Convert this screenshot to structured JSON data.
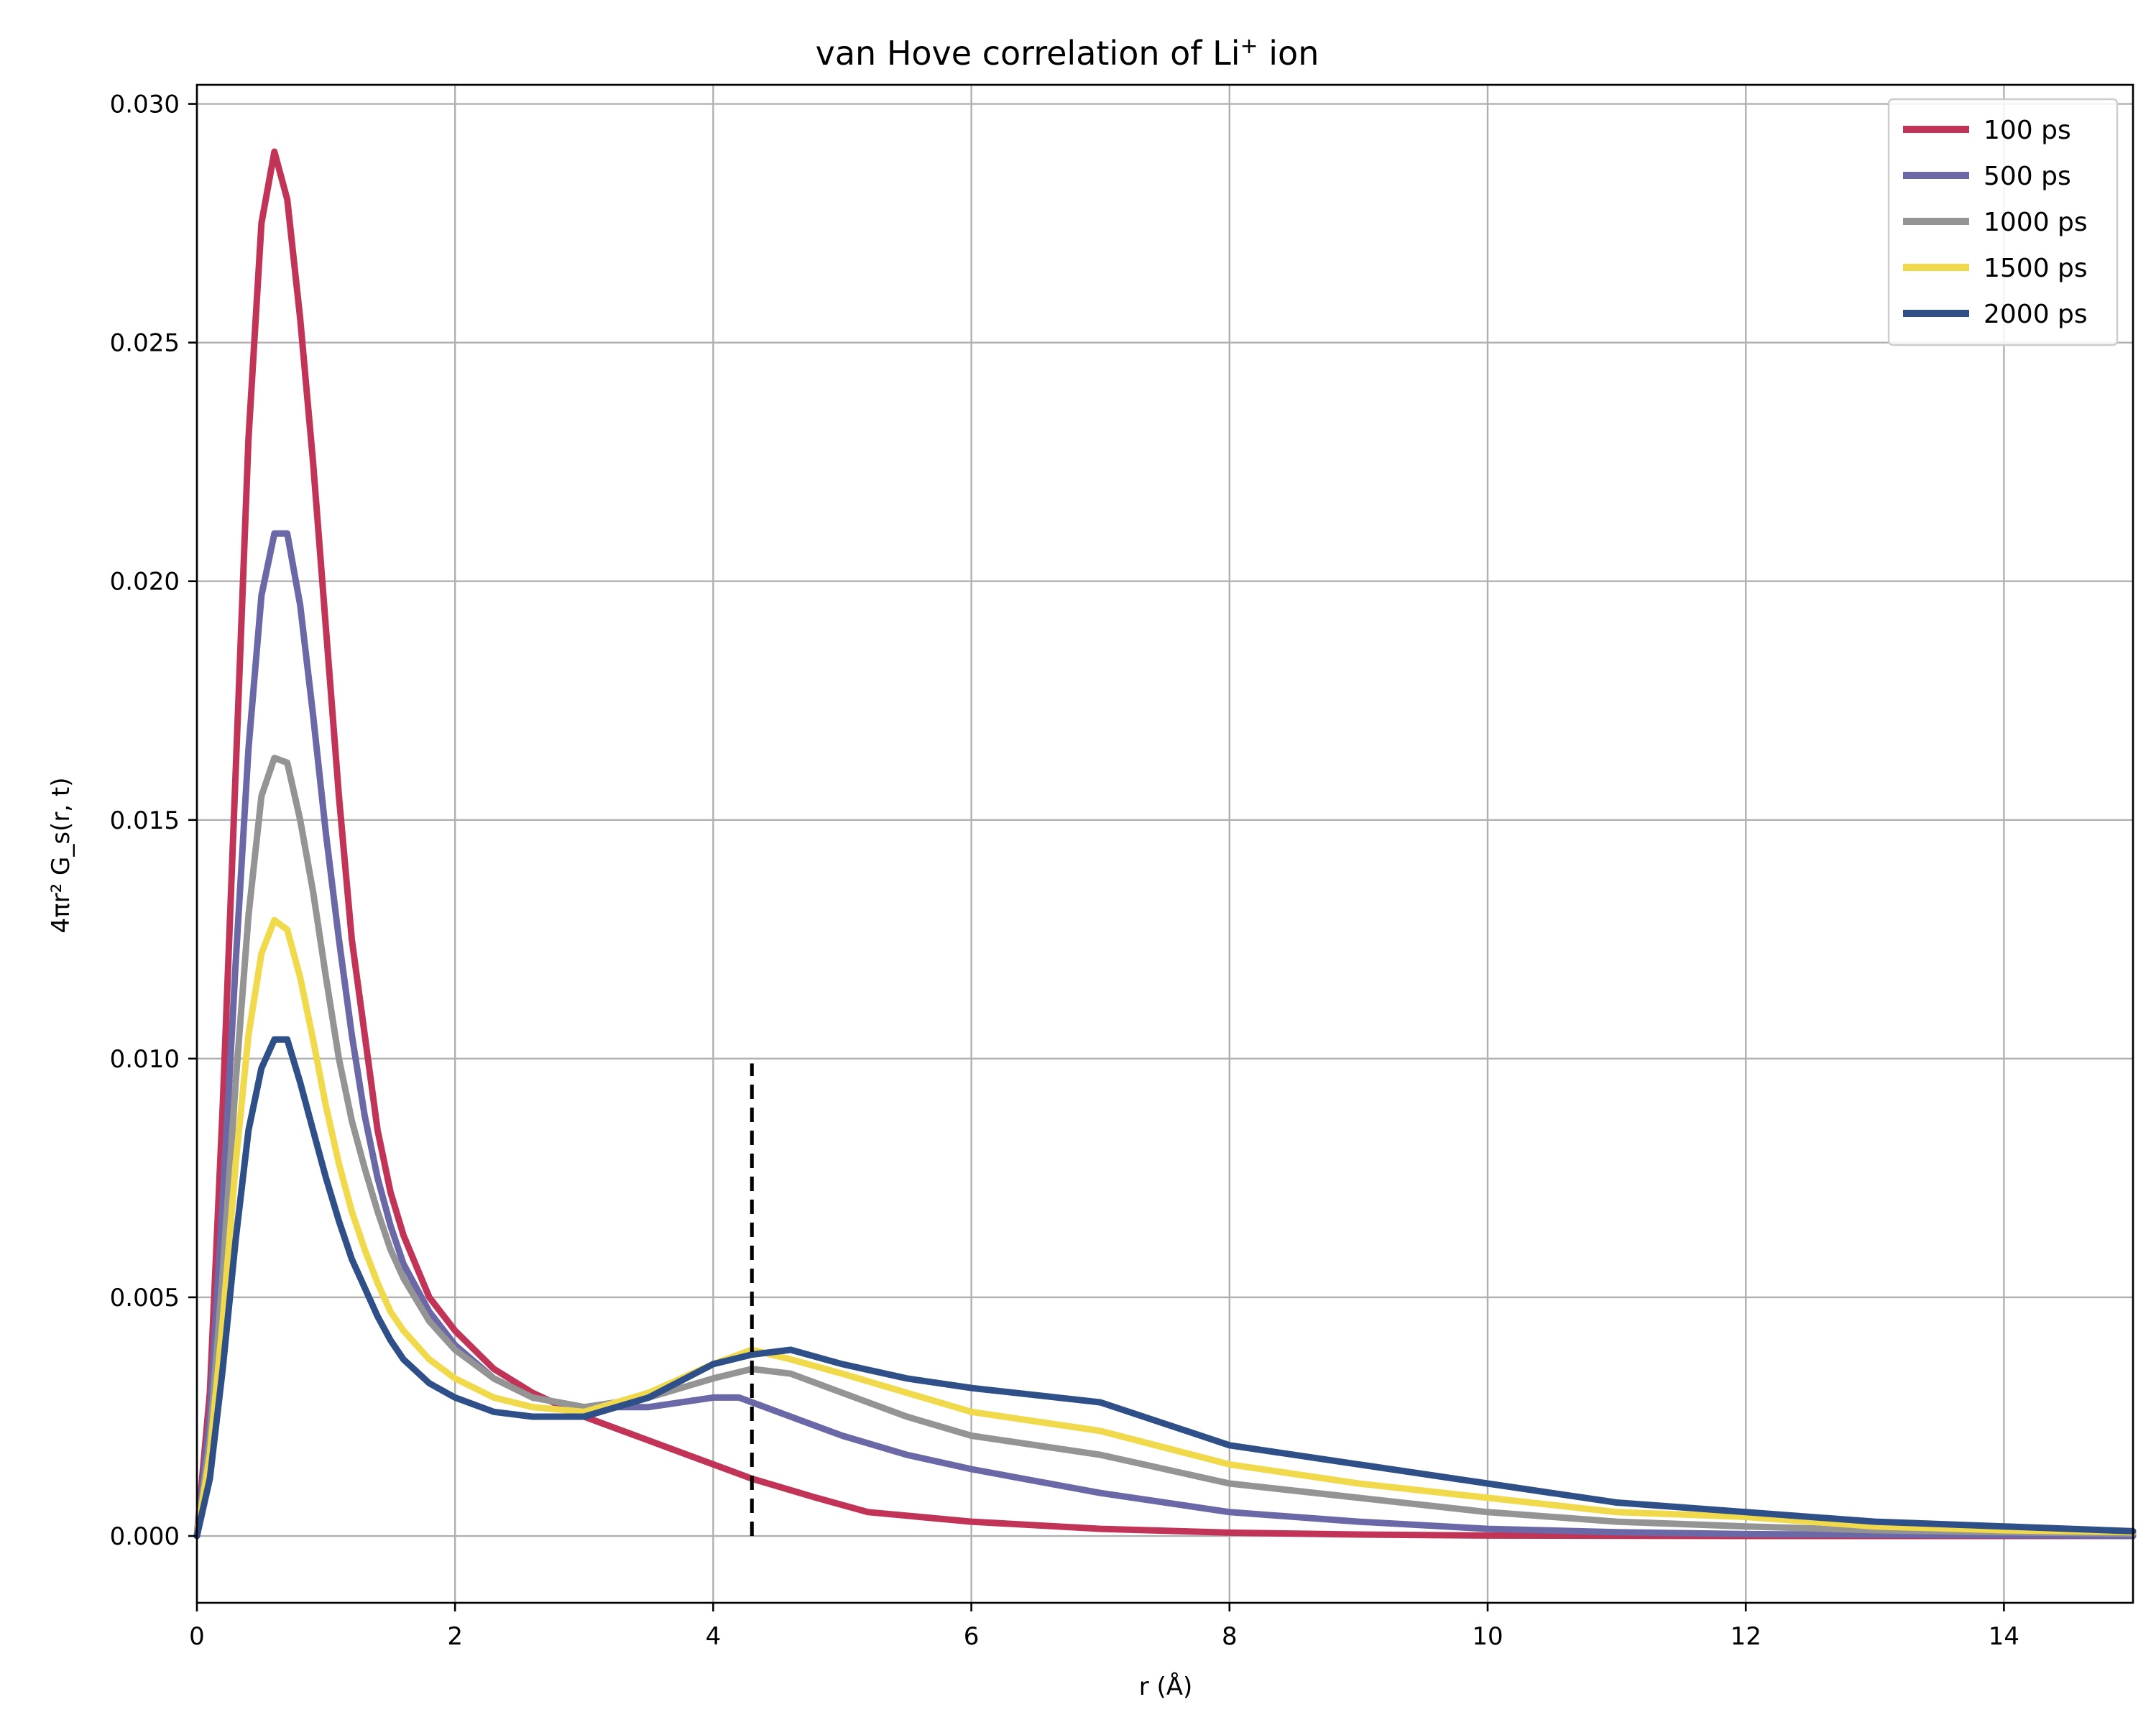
{
  "chart_data": {
    "type": "line",
    "title": "van Hove correlation of Li",
    "title_superscript": "+",
    "title_suffix": " ion",
    "xlabel": "r (Å)",
    "ylabel": "4πr² G_s(r, t)",
    "xlim": [
      0,
      15
    ],
    "ylim": [
      -0.0014,
      0.0304
    ],
    "xticks": [
      "0",
      "2",
      "4",
      "6",
      "8",
      "10",
      "12",
      "14"
    ],
    "xtick_values": [
      0,
      2,
      4,
      6,
      8,
      10,
      12,
      14
    ],
    "yticks": [
      "0.000",
      "0.005",
      "0.010",
      "0.015",
      "0.020",
      "0.025",
      "0.030"
    ],
    "ytick_values": [
      0,
      0.005,
      0.01,
      0.015,
      0.02,
      0.025,
      0.03
    ],
    "grid": true,
    "legend_position": "top-right",
    "vline": {
      "x": 4.3,
      "y_top": 0.0099,
      "style": "dashed",
      "color": "#000000"
    },
    "series": [
      {
        "name": "100 ps",
        "color": "#c23457",
        "points": [
          [
            0,
            0
          ],
          [
            0.1,
            0.003
          ],
          [
            0.2,
            0.009
          ],
          [
            0.3,
            0.016
          ],
          [
            0.4,
            0.023
          ],
          [
            0.5,
            0.0275
          ],
          [
            0.6,
            0.029
          ],
          [
            0.7,
            0.028
          ],
          [
            0.8,
            0.0255
          ],
          [
            0.9,
            0.0225
          ],
          [
            1.0,
            0.019
          ],
          [
            1.1,
            0.0155
          ],
          [
            1.2,
            0.0125
          ],
          [
            1.3,
            0.0105
          ],
          [
            1.4,
            0.0085
          ],
          [
            1.5,
            0.0072
          ],
          [
            1.6,
            0.0063
          ],
          [
            1.8,
            0.005
          ],
          [
            2.0,
            0.0043
          ],
          [
            2.3,
            0.0035
          ],
          [
            2.6,
            0.003
          ],
          [
            3.0,
            0.0025
          ],
          [
            3.4,
            0.0021
          ],
          [
            3.8,
            0.0017
          ],
          [
            4.3,
            0.0012
          ],
          [
            4.8,
            0.0008
          ],
          [
            5.2,
            0.0005
          ],
          [
            6.0,
            0.0003
          ],
          [
            7.0,
            0.00015
          ],
          [
            8.0,
            7e-05
          ],
          [
            9.0,
            3e-05
          ],
          [
            10.0,
            1e-05
          ],
          [
            12.0,
            0.0
          ],
          [
            15.0,
            0.0
          ]
        ]
      },
      {
        "name": "500 ps",
        "color": "#6b68a8",
        "points": [
          [
            0,
            0
          ],
          [
            0.1,
            0.0025
          ],
          [
            0.2,
            0.007
          ],
          [
            0.3,
            0.012
          ],
          [
            0.4,
            0.0165
          ],
          [
            0.5,
            0.0197
          ],
          [
            0.6,
            0.021
          ],
          [
            0.7,
            0.021
          ],
          [
            0.8,
            0.0195
          ],
          [
            0.9,
            0.0172
          ],
          [
            1.0,
            0.0147
          ],
          [
            1.1,
            0.0125
          ],
          [
            1.2,
            0.0105
          ],
          [
            1.3,
            0.0088
          ],
          [
            1.4,
            0.0075
          ],
          [
            1.5,
            0.0065
          ],
          [
            1.6,
            0.0057
          ],
          [
            1.8,
            0.0047
          ],
          [
            2.0,
            0.004
          ],
          [
            2.3,
            0.0033
          ],
          [
            2.6,
            0.0029
          ],
          [
            3.0,
            0.0027
          ],
          [
            3.5,
            0.0027
          ],
          [
            4.0,
            0.0029
          ],
          [
            4.2,
            0.0029
          ],
          [
            4.6,
            0.0025
          ],
          [
            5.0,
            0.0021
          ],
          [
            5.5,
            0.0017
          ],
          [
            6.0,
            0.0014
          ],
          [
            7.0,
            0.0009
          ],
          [
            8.0,
            0.0005
          ],
          [
            9.0,
            0.0003
          ],
          [
            10.0,
            0.00015
          ],
          [
            11.0,
            8e-05
          ],
          [
            12.0,
            4e-05
          ],
          [
            15.0,
            0.0
          ]
        ]
      },
      {
        "name": "1000 ps",
        "color": "#949494",
        "points": [
          [
            0,
            0
          ],
          [
            0.1,
            0.002
          ],
          [
            0.2,
            0.0055
          ],
          [
            0.3,
            0.0095
          ],
          [
            0.4,
            0.013
          ],
          [
            0.5,
            0.0155
          ],
          [
            0.6,
            0.0163
          ],
          [
            0.7,
            0.0162
          ],
          [
            0.8,
            0.015
          ],
          [
            0.9,
            0.0135
          ],
          [
            1.0,
            0.0117
          ],
          [
            1.1,
            0.01
          ],
          [
            1.2,
            0.0087
          ],
          [
            1.3,
            0.0077
          ],
          [
            1.4,
            0.0068
          ],
          [
            1.5,
            0.006
          ],
          [
            1.6,
            0.0054
          ],
          [
            1.8,
            0.0045
          ],
          [
            2.0,
            0.0039
          ],
          [
            2.3,
            0.0033
          ],
          [
            2.6,
            0.0029
          ],
          [
            3.0,
            0.0027
          ],
          [
            3.5,
            0.0029
          ],
          [
            4.0,
            0.0033
          ],
          [
            4.3,
            0.0035
          ],
          [
            4.6,
            0.0034
          ],
          [
            5.0,
            0.003
          ],
          [
            5.5,
            0.0025
          ],
          [
            6.0,
            0.0021
          ],
          [
            7.0,
            0.0017
          ],
          [
            8.0,
            0.0011
          ],
          [
            9.0,
            0.0008
          ],
          [
            10.0,
            0.0005
          ],
          [
            11.0,
            0.0003
          ],
          [
            12.0,
            0.0002
          ],
          [
            13.0,
            0.00012
          ],
          [
            14.0,
            8e-05
          ],
          [
            15.0,
            5e-05
          ]
        ]
      },
      {
        "name": "1500 ps",
        "color": "#f0da4b",
        "points": [
          [
            0,
            0
          ],
          [
            0.1,
            0.0017
          ],
          [
            0.2,
            0.0045
          ],
          [
            0.3,
            0.0078
          ],
          [
            0.4,
            0.0105
          ],
          [
            0.5,
            0.0122
          ],
          [
            0.6,
            0.0129
          ],
          [
            0.7,
            0.0127
          ],
          [
            0.8,
            0.0117
          ],
          [
            0.9,
            0.0104
          ],
          [
            1.0,
            0.009
          ],
          [
            1.1,
            0.0078
          ],
          [
            1.2,
            0.0068
          ],
          [
            1.3,
            0.006
          ],
          [
            1.4,
            0.0053
          ],
          [
            1.5,
            0.0047
          ],
          [
            1.6,
            0.0043
          ],
          [
            1.8,
            0.0037
          ],
          [
            2.0,
            0.0033
          ],
          [
            2.3,
            0.0029
          ],
          [
            2.6,
            0.0027
          ],
          [
            3.0,
            0.0026
          ],
          [
            3.5,
            0.003
          ],
          [
            4.0,
            0.0036
          ],
          [
            4.3,
            0.0039
          ],
          [
            4.6,
            0.0037
          ],
          [
            5.0,
            0.0034
          ],
          [
            5.5,
            0.003
          ],
          [
            6.0,
            0.0026
          ],
          [
            7.0,
            0.0022
          ],
          [
            8.0,
            0.0015
          ],
          [
            9.0,
            0.0011
          ],
          [
            10.0,
            0.0008
          ],
          [
            11.0,
            0.0005
          ],
          [
            12.0,
            0.0004
          ],
          [
            13.0,
            0.0002
          ],
          [
            14.0,
            0.00012
          ],
          [
            15.0,
            8e-05
          ]
        ]
      },
      {
        "name": "2000 ps",
        "color": "#2f4f88",
        "points": [
          [
            0,
            0
          ],
          [
            0.1,
            0.0012
          ],
          [
            0.2,
            0.0035
          ],
          [
            0.3,
            0.0062
          ],
          [
            0.4,
            0.0085
          ],
          [
            0.5,
            0.0098
          ],
          [
            0.6,
            0.0104
          ],
          [
            0.7,
            0.0104
          ],
          [
            0.8,
            0.0095
          ],
          [
            0.9,
            0.0085
          ],
          [
            1.0,
            0.0075
          ],
          [
            1.1,
            0.0066
          ],
          [
            1.2,
            0.0058
          ],
          [
            1.3,
            0.0052
          ],
          [
            1.4,
            0.0046
          ],
          [
            1.5,
            0.0041
          ],
          [
            1.6,
            0.0037
          ],
          [
            1.8,
            0.0032
          ],
          [
            2.0,
            0.0029
          ],
          [
            2.3,
            0.0026
          ],
          [
            2.6,
            0.0025
          ],
          [
            3.0,
            0.0025
          ],
          [
            3.5,
            0.0029
          ],
          [
            4.0,
            0.0036
          ],
          [
            4.3,
            0.0038
          ],
          [
            4.6,
            0.0039
          ],
          [
            5.0,
            0.0036
          ],
          [
            5.5,
            0.0033
          ],
          [
            6.0,
            0.0031
          ],
          [
            7.0,
            0.0028
          ],
          [
            8.0,
            0.0019
          ],
          [
            9.0,
            0.0015
          ],
          [
            10.0,
            0.0011
          ],
          [
            11.0,
            0.0007
          ],
          [
            12.0,
            0.0005
          ],
          [
            13.0,
            0.0003
          ],
          [
            14.0,
            0.0002
          ],
          [
            15.0,
            0.0001
          ]
        ]
      }
    ]
  }
}
